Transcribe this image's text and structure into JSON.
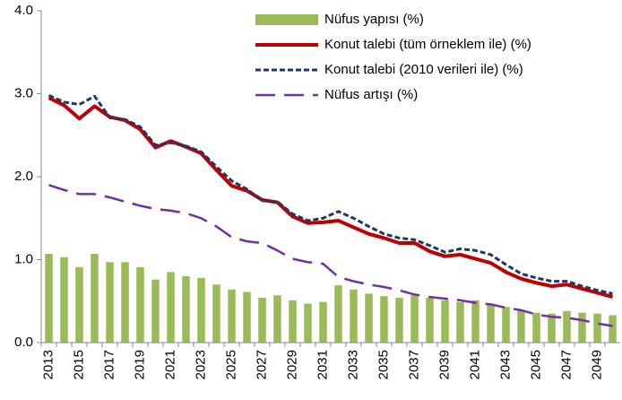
{
  "chart_data": {
    "type": "bar",
    "categories": [
      "2013",
      null,
      "2015",
      null,
      "2017",
      null,
      "2019",
      null,
      "2021",
      null,
      "2023",
      null,
      "2025",
      null,
      "2027",
      null,
      "2029",
      null,
      "2031",
      null,
      "2033",
      null,
      "2035",
      null,
      "2037",
      null,
      "2039",
      null,
      "2041",
      null,
      "2043",
      null,
      "2045",
      null,
      "2047",
      null,
      "2049",
      null
    ],
    "series": [
      {
        "name": "Nüfus yapısı (%)",
        "type": "bar",
        "color": "#9bbb59",
        "values": [
          1.07,
          1.03,
          0.91,
          1.07,
          0.97,
          0.97,
          0.91,
          0.76,
          0.85,
          0.8,
          0.78,
          0.7,
          0.64,
          0.61,
          0.54,
          0.57,
          0.51,
          0.47,
          0.49,
          0.69,
          0.64,
          0.59,
          0.56,
          0.54,
          0.57,
          0.54,
          0.51,
          0.49,
          0.51,
          0.47,
          0.43,
          0.39,
          0.36,
          0.35,
          0.38,
          0.36,
          0.35,
          0.33
        ]
      },
      {
        "name": "Konut talebi (tüm örneklem ile) (%)",
        "type": "line",
        "color": "#c00000",
        "dash": "solid",
        "values": [
          2.95,
          2.86,
          2.7,
          2.85,
          2.72,
          2.68,
          2.57,
          2.35,
          2.43,
          2.36,
          2.28,
          2.08,
          1.89,
          1.83,
          1.72,
          1.69,
          1.52,
          1.44,
          1.45,
          1.47,
          1.39,
          1.31,
          1.26,
          1.2,
          1.2,
          1.1,
          1.04,
          1.06,
          1.01,
          0.96,
          0.85,
          0.77,
          0.72,
          0.68,
          0.7,
          0.65,
          0.6,
          0.55
        ]
      },
      {
        "name": "Konut talebi (2010 verileri ile) (%)",
        "type": "line",
        "color": "#1f3864",
        "dash": "dotted",
        "values": [
          2.98,
          2.9,
          2.87,
          2.97,
          2.71,
          2.69,
          2.6,
          2.38,
          2.41,
          2.37,
          2.3,
          2.12,
          1.95,
          1.85,
          1.71,
          1.7,
          1.55,
          1.47,
          1.5,
          1.58,
          1.5,
          1.4,
          1.31,
          1.26,
          1.24,
          1.17,
          1.09,
          1.13,
          1.11,
          1.06,
          0.94,
          0.83,
          0.78,
          0.74,
          0.74,
          0.68,
          0.63,
          0.59
        ]
      },
      {
        "name": "Nüfus artışı (%)",
        "type": "line",
        "color": "#7030a0",
        "dash": "dashed",
        "values": [
          1.9,
          1.84,
          1.79,
          1.79,
          1.75,
          1.7,
          1.65,
          1.61,
          1.59,
          1.56,
          1.5,
          1.4,
          1.27,
          1.22,
          1.2,
          1.11,
          1.01,
          0.97,
          0.95,
          0.79,
          0.74,
          0.7,
          0.67,
          0.63,
          0.58,
          0.55,
          0.53,
          0.51,
          0.48,
          0.46,
          0.42,
          0.39,
          0.34,
          0.31,
          0.3,
          0.27,
          0.23,
          0.2
        ]
      }
    ],
    "ylim": [
      0,
      4
    ],
    "yticks": [
      {
        "value": 0,
        "label": "0.0"
      },
      {
        "value": 1,
        "label": "1.0"
      },
      {
        "value": 2,
        "label": "2.0"
      },
      {
        "value": 3,
        "label": "3.0"
      },
      {
        "value": 4,
        "label": "4.0"
      }
    ],
    "legend": "upper-right"
  }
}
